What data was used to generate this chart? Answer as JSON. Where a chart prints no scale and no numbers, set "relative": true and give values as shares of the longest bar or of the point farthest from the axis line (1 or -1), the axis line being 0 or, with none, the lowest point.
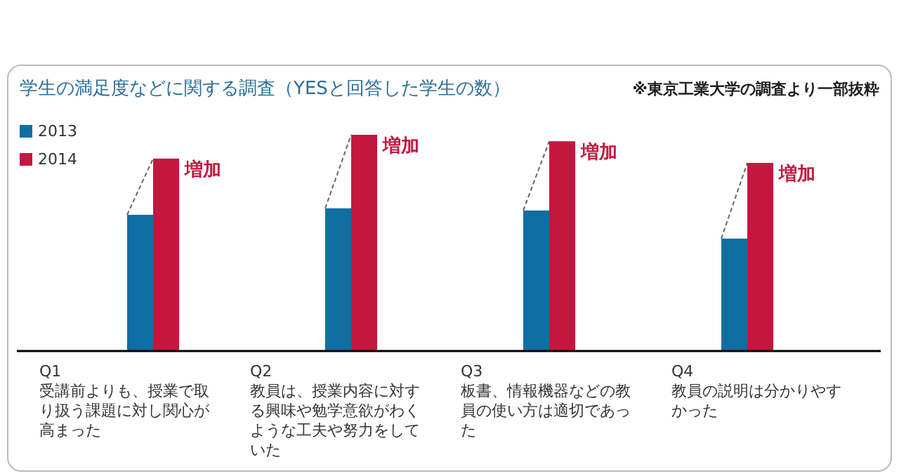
{
  "chart_data": {
    "type": "bar",
    "title": "学生の満足度などに関する調査（YESと回答した学生の数）",
    "relative": true,
    "legend": "left",
    "categories": [
      "Q1\n受講前よりも、授業で取り扱う課題に対し関心が高まった",
      "Q2\n教員は、授業内容に対する興味や勉学意欲がわくような工夫や努力をしていた",
      "Q3\n板書、情報機器などの教員の使い方は適切であった",
      "Q4\n教員の説明は分かりやすかった"
    ],
    "series": [
      {
        "name": "2013",
        "color": "#0e6ea3",
        "values": [
          0.63,
          0.66,
          0.65,
          0.52
        ]
      },
      {
        "name": "2014",
        "color": "#c4173f",
        "values": [
          0.89,
          1,
          0.97,
          0.87
        ]
      }
    ],
    "annotations": [
      "※東京工業大学の調査より一部抜粋",
      "増加",
      "増加",
      "増加",
      "増加"
    ]
  }
}
